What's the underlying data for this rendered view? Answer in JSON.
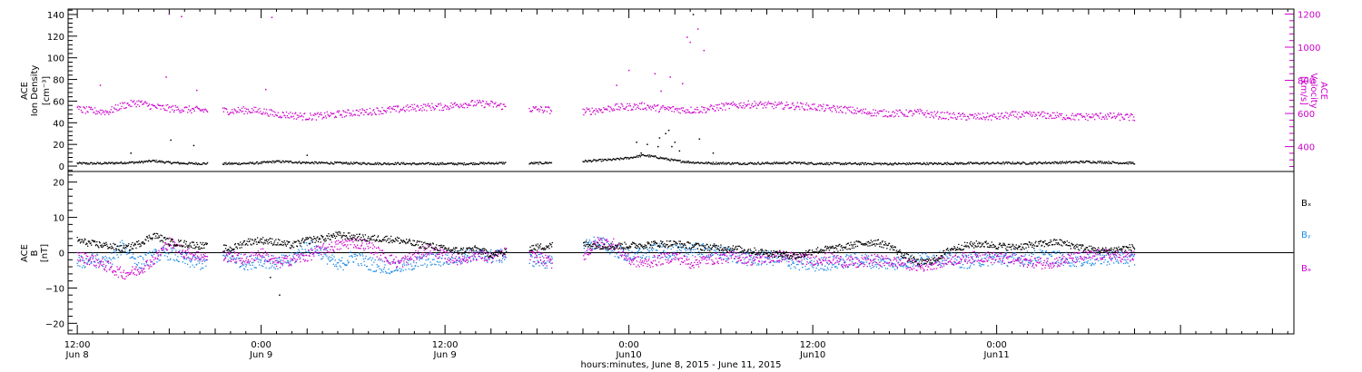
{
  "chart_data": [
    {
      "type": "scatter",
      "title": "",
      "left_axis": {
        "label_lines": [
          "ACE",
          "Ion Density",
          "[cm⁻³]"
        ],
        "ylim": [
          -5,
          145
        ],
        "ticks": [
          0,
          20,
          40,
          60,
          80,
          100,
          120,
          140
        ],
        "tick_labels": [
          "0",
          "20",
          "40",
          "60",
          "80",
          "100",
          "120",
          "140"
        ]
      },
      "right_axis": {
        "label_lines": [
          "ACE",
          "Velocity",
          "[km/s]"
        ],
        "ylim": [
          250,
          1230
        ],
        "ticks": [
          400,
          600,
          800,
          1000,
          1200
        ],
        "tick_labels": [
          "400",
          "600",
          "800",
          "1000",
          "1200"
        ],
        "color": "#cc00cc"
      },
      "series": [
        {
          "key": "density",
          "color": "#000000",
          "axis": "left",
          "x_hours": [
            0,
            1,
            2,
            3,
            4,
            5,
            6,
            7,
            8,
            9,
            10,
            11,
            12,
            13,
            14,
            15,
            16,
            17,
            18,
            19,
            20,
            21,
            22,
            23,
            24,
            25,
            26,
            27,
            28,
            29,
            30,
            31,
            32,
            33,
            34,
            35,
            36,
            37,
            38,
            39,
            40,
            41,
            42,
            43,
            44,
            45,
            46,
            47,
            48,
            49,
            50,
            51,
            52,
            53,
            54,
            55,
            56,
            57,
            58,
            59,
            60,
            61,
            62,
            63,
            64,
            65,
            66,
            67,
            68,
            69
          ],
          "values": [
            2.5,
            2.4,
            2.6,
            3.1,
            3.5,
            4.8,
            3.2,
            2.5,
            2.3,
            2.3,
            2.2,
            2.4,
            3.0,
            4.2,
            3.8,
            3.1,
            2.9,
            2.8,
            2.6,
            2.4,
            2.2,
            2.4,
            2.0,
            2.1,
            2.2,
            2.0,
            2.4,
            2.6,
            2.8,
            2.5,
            2.6,
            3.2,
            3.6,
            4.4,
            5.2,
            6.0,
            7.5,
            10.0,
            7.8,
            5.0,
            3.6,
            2.8,
            2.6,
            2.4,
            2.5,
            2.6,
            2.8,
            3.0,
            2.4,
            2.3,
            2.2,
            2.1,
            2.2,
            2.0,
            2.1,
            2.3,
            2.2,
            2.4,
            2.5,
            2.6,
            2.7,
            2.8,
            2.6,
            3.0,
            3.2,
            3.5,
            4.0,
            3.5,
            3.0,
            2.8
          ],
          "gaps_hours": [
            [
              8.5,
              9.5
            ],
            [
              28.0,
              29.5
            ],
            [
              31.0,
              33.0
            ]
          ],
          "outliers": [
            [
              6.1,
              24
            ],
            [
              7.6,
              19
            ],
            [
              3.5,
              12
            ],
            [
              15.0,
              10
            ],
            [
              36.5,
              22
            ],
            [
              37.2,
              20
            ],
            [
              38.0,
              26
            ],
            [
              38.4,
              30
            ],
            [
              38.8,
              18
            ],
            [
              39.3,
              14
            ],
            [
              40.2,
              140
            ],
            [
              40.6,
              25
            ],
            [
              41.5,
              12
            ],
            [
              37.9,
              18
            ],
            [
              38.6,
              33
            ],
            [
              39.0,
              22
            ],
            [
              36.8,
              12
            ]
          ]
        },
        {
          "key": "velocity",
          "color": "#cc00cc",
          "axis": "right",
          "x_hours": [
            0,
            1,
            2,
            3,
            4,
            5,
            6,
            7,
            8,
            9,
            10,
            11,
            12,
            13,
            14,
            15,
            16,
            17,
            18,
            19,
            20,
            21,
            22,
            23,
            24,
            25,
            26,
            27,
            28,
            29,
            30,
            31,
            32,
            33,
            34,
            35,
            36,
            37,
            38,
            39,
            40,
            41,
            42,
            43,
            44,
            45,
            46,
            47,
            48,
            49,
            50,
            51,
            52,
            53,
            54,
            55,
            56,
            57,
            58,
            59,
            60,
            61,
            62,
            63,
            64,
            65,
            66,
            67,
            68,
            69
          ],
          "values": [
            625,
            615,
            610,
            650,
            665,
            640,
            630,
            625,
            620,
            618,
            615,
            620,
            615,
            595,
            590,
            580,
            585,
            595,
            605,
            610,
            620,
            625,
            635,
            640,
            640,
            655,
            660,
            655,
            640,
            630,
            625,
            620,
            615,
            610,
            620,
            635,
            640,
            645,
            630,
            625,
            620,
            625,
            640,
            650,
            655,
            650,
            648,
            645,
            640,
            630,
            625,
            612,
            605,
            600,
            600,
            605,
            590,
            585,
            580,
            580,
            580,
            590,
            590,
            590,
            585,
            580,
            580,
            585,
            580,
            575
          ],
          "gaps_hours": [
            [
              8.5,
              9.5
            ],
            [
              28.0,
              29.5
            ],
            [
              31.0,
              33.0
            ]
          ],
          "outliers": [
            [
              6.0,
              1200
            ],
            [
              6.8,
              1185
            ],
            [
              1.5,
              770
            ],
            [
              5.8,
              820
            ],
            [
              7.8,
              740
            ],
            [
              12.7,
              1180
            ],
            [
              12.3,
              745
            ],
            [
              36.0,
              860
            ],
            [
              37.7,
              840
            ],
            [
              38.7,
              820
            ],
            [
              39.8,
              1060
            ],
            [
              40.0,
              1030
            ],
            [
              40.5,
              1110
            ],
            [
              39.5,
              780
            ],
            [
              38.1,
              735
            ],
            [
              40.9,
              980
            ],
            [
              35.2,
              770
            ]
          ]
        }
      ]
    },
    {
      "type": "scatter",
      "title": "",
      "left_axis": {
        "label_lines": [
          "ACE",
          "B",
          "[nT]"
        ],
        "ylim": [
          -23,
          23
        ],
        "ticks": [
          -20,
          -10,
          0,
          10,
          20
        ],
        "tick_labels": [
          "−20",
          "−10",
          "0",
          "10",
          "20"
        ]
      },
      "zero_line": true,
      "legend": {
        "placement": "right",
        "entries": [
          "Bₓ",
          "Bᵧ",
          "Bₔ"
        ]
      },
      "series": [
        {
          "key": "bx",
          "color": "#000000",
          "x_hours": [
            0,
            1,
            2,
            3,
            4,
            5,
            6,
            7,
            8,
            9,
            10,
            11,
            12,
            13,
            14,
            15,
            16,
            17,
            18,
            19,
            20,
            21,
            22,
            23,
            24,
            25,
            26,
            27,
            28,
            29,
            30,
            31,
            32,
            33,
            34,
            35,
            36,
            37,
            38,
            39,
            40,
            41,
            42,
            43,
            44,
            45,
            46,
            47,
            48,
            49,
            50,
            51,
            52,
            53,
            54,
            55,
            56,
            57,
            58,
            59,
            60,
            61,
            62,
            63,
            64,
            65,
            66,
            67,
            68,
            69
          ],
          "values": [
            3.5,
            2.5,
            2.0,
            1.0,
            2.5,
            5.0,
            3.0,
            2.5,
            2.0,
            1.5,
            1.0,
            3.0,
            3.5,
            3.0,
            2.0,
            3.5,
            4.0,
            5.0,
            4.5,
            4.0,
            4.0,
            3.5,
            2.5,
            2.0,
            1.0,
            0.5,
            1.0,
            -0.5,
            0.0,
            1.5,
            1.5,
            2.0,
            2.5,
            2.5,
            2.0,
            1.8,
            2.0,
            2.2,
            2.5,
            2.5,
            2.0,
            1.5,
            1.5,
            1.0,
            0.5,
            0.0,
            -0.5,
            -1.0,
            0.5,
            1.0,
            1.5,
            2.5,
            3.0,
            2.0,
            -1.0,
            -3.0,
            -2.0,
            1.0,
            2.0,
            2.5,
            2.0,
            1.5,
            2.0,
            2.5,
            3.0,
            2.0,
            1.0,
            0.5,
            1.0,
            1.5
          ],
          "gaps_hours": [
            [
              8.5,
              9.5
            ],
            [
              28.0,
              29.5
            ],
            [
              31.0,
              33.0
            ]
          ],
          "outliers": [
            [
              13.2,
              -12
            ],
            [
              12.6,
              -7
            ]
          ]
        },
        {
          "key": "by",
          "color": "#1e88e5",
          "x_hours": [
            0,
            1,
            2,
            3,
            4,
            5,
            6,
            7,
            8,
            9,
            10,
            11,
            12,
            13,
            14,
            15,
            16,
            17,
            18,
            19,
            20,
            21,
            22,
            23,
            24,
            25,
            26,
            27,
            28,
            29,
            30,
            31,
            32,
            33,
            34,
            35,
            36,
            37,
            38,
            39,
            40,
            41,
            42,
            43,
            44,
            45,
            46,
            47,
            48,
            49,
            50,
            51,
            52,
            53,
            54,
            55,
            56,
            57,
            58,
            59,
            60,
            61,
            62,
            63,
            64,
            65,
            66,
            67,
            68,
            69
          ],
          "values": [
            -3.0,
            -2.0,
            -3.0,
            2.0,
            -3.0,
            -1.0,
            0.0,
            -2.0,
            -3.0,
            -2.0,
            -1.0,
            -3.0,
            -2.0,
            -3.0,
            -2.0,
            2.0,
            0.0,
            -4.0,
            -1.0,
            -3.0,
            -4.0,
            -4.0,
            -3.0,
            -2.0,
            -2.0,
            -1.0,
            -0.5,
            -1.0,
            -1.0,
            -2.0,
            -2.0,
            -3.0,
            -2.0,
            2.0,
            3.0,
            1.0,
            -1.0,
            0.0,
            0.5,
            0.0,
            1.0,
            0.5,
            0.0,
            -1.0,
            -2.0,
            -1.5,
            -2.0,
            -3.0,
            -3.5,
            -3.0,
            -2.5,
            -2.0,
            -2.5,
            -3.0,
            -2.5,
            -2.0,
            -1.5,
            -2.0,
            -2.5,
            -2.0,
            -1.5,
            -2.0,
            -1.5,
            -1.0,
            -1.5,
            -2.0,
            -2.0,
            -1.5,
            -1.5,
            -2.0
          ],
          "gaps_hours": [
            [
              8.5,
              9.5
            ],
            [
              28.0,
              29.5
            ],
            [
              31.0,
              33.0
            ]
          ],
          "outliers": []
        },
        {
          "key": "bz",
          "color": "#cc00cc",
          "x_hours": [
            0,
            1,
            2,
            3,
            4,
            5,
            6,
            7,
            8,
            9,
            10,
            11,
            12,
            13,
            14,
            15,
            16,
            17,
            18,
            19,
            20,
            21,
            22,
            23,
            24,
            25,
            26,
            27,
            28,
            29,
            30,
            31,
            32,
            33,
            34,
            35,
            36,
            37,
            38,
            39,
            40,
            41,
            42,
            43,
            44,
            45,
            46,
            47,
            48,
            49,
            50,
            51,
            52,
            53,
            54,
            55,
            56,
            57,
            58,
            59,
            60,
            61,
            62,
            63,
            64,
            65,
            66,
            67,
            68,
            69
          ],
          "values": [
            -1.0,
            -2.0,
            -4.0,
            -6.0,
            -5.0,
            -2.0,
            3.0,
            0.0,
            -1.0,
            -1.5,
            -1.0,
            -2.0,
            0.0,
            -3.0,
            -2.0,
            -1.0,
            1.0,
            2.0,
            3.0,
            2.0,
            -1.0,
            -3.0,
            -1.0,
            1.0,
            -1.0,
            -2.0,
            -0.5,
            -1.5,
            0.0,
            -1.0,
            -1.0,
            -3.0,
            -2.0,
            -1.0,
            3.0,
            2.5,
            -2.0,
            -3.0,
            -2.0,
            -1.0,
            -3.0,
            -2.0,
            -1.5,
            -1.0,
            -2.0,
            -1.5,
            -1.0,
            -1.5,
            -2.0,
            -1.5,
            -2.5,
            -3.0,
            -2.0,
            -2.5,
            -3.0,
            -4.0,
            -3.0,
            -2.0,
            -1.5,
            -1.0,
            -1.5,
            -2.0,
            -2.5,
            -3.0,
            -2.5,
            -1.5,
            -1.0,
            -0.5,
            -1.0,
            -1.0
          ],
          "gaps_hours": [
            [
              8.5,
              9.5
            ],
            [
              28.0,
              29.5
            ],
            [
              31.0,
              33.0
            ]
          ],
          "outliers": []
        }
      ]
    }
  ],
  "x_axis": {
    "xlim_hours": [
      -0.6,
      79.4
    ],
    "major_ticks": [
      {
        "hour": 0,
        "label": "12:00",
        "date": "Jun 8"
      },
      {
        "hour": 12,
        "label": "0:00",
        "date": "Jun 9"
      },
      {
        "hour": 24,
        "label": "12:00",
        "date": "Jun 9"
      },
      {
        "hour": 36,
        "label": "0:00",
        "date": "Jun10"
      },
      {
        "hour": 48,
        "label": "12:00",
        "date": "Jun10"
      },
      {
        "hour": 60,
        "label": "0:00",
        "date": "Jun11"
      }
    ],
    "caption": "hours:minutes, June  8, 2015 - June 11, 2015"
  }
}
